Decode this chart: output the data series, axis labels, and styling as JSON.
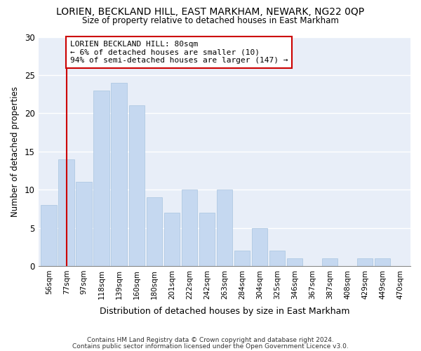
{
  "title": "LORIEN, BECKLAND HILL, EAST MARKHAM, NEWARK, NG22 0QP",
  "subtitle": "Size of property relative to detached houses in East Markham",
  "xlabel": "Distribution of detached houses by size in East Markham",
  "ylabel": "Number of detached properties",
  "bar_labels": [
    "56sqm",
    "77sqm",
    "97sqm",
    "118sqm",
    "139sqm",
    "160sqm",
    "180sqm",
    "201sqm",
    "222sqm",
    "242sqm",
    "263sqm",
    "284sqm",
    "304sqm",
    "325sqm",
    "346sqm",
    "367sqm",
    "387sqm",
    "408sqm",
    "429sqm",
    "449sqm",
    "470sqm"
  ],
  "bar_values": [
    8,
    14,
    11,
    23,
    24,
    21,
    9,
    7,
    10,
    7,
    10,
    2,
    5,
    2,
    1,
    0,
    1,
    0,
    1,
    1,
    0
  ],
  "bar_color": "#c5d8f0",
  "bar_edge_color": "#a8c4e0",
  "vline_x": 1,
  "vline_color": "#cc0000",
  "annotation_title": "LORIEN BECKLAND HILL: 80sqm",
  "annotation_line1": "← 6% of detached houses are smaller (10)",
  "annotation_line2": "94% of semi-detached houses are larger (147) →",
  "annotation_box_color": "#ffffff",
  "annotation_box_edge": "#cc0000",
  "ylim": [
    0,
    30
  ],
  "yticks": [
    0,
    5,
    10,
    15,
    20,
    25,
    30
  ],
  "footnote1": "Contains HM Land Registry data © Crown copyright and database right 2024.",
  "footnote2": "Contains public sector information licensed under the Open Government Licence v3.0.",
  "fig_background": "#ffffff",
  "plot_background": "#e8eef8"
}
